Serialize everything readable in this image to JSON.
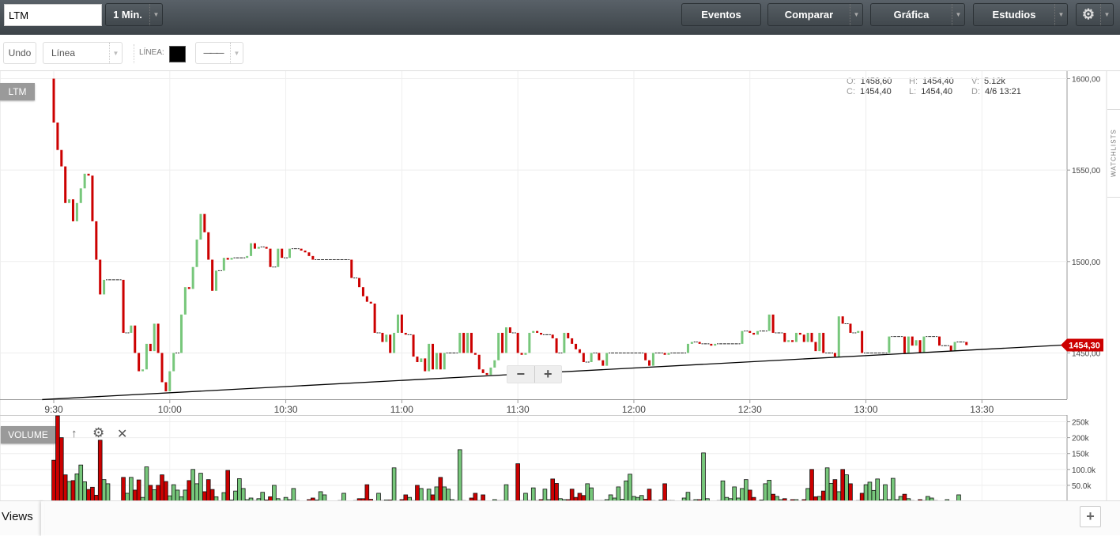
{
  "topbar": {
    "symbol": "LTM",
    "interval": "1 Min.",
    "buttons": [
      "Eventos",
      "Comparar",
      "Gráfica",
      "Estudios"
    ],
    "settings_icon": "gear-icon"
  },
  "toolbar": {
    "undo": "Undo",
    "tool": "Línea",
    "line_label": "LÍNEA:",
    "line_color": "#000000",
    "line_style": "———"
  },
  "ohlc": {
    "o_label": "O:",
    "o": "1458,60",
    "h_label": "H:",
    "h": "1454,40",
    "v_label": "V:",
    "v": "5.12k",
    "c_label": "C:",
    "c": "1454,40",
    "l_label": "L:",
    "l": "1454,40",
    "d_label": "D:",
    "d": "4/6 13:21"
  },
  "price_panel": {
    "badge": "LTM",
    "current_price": "1454,30"
  },
  "volume_panel": {
    "badge": "VOLUME"
  },
  "watchlists": "WATCHLISTS",
  "views": {
    "label": "Views"
  },
  "colors": {
    "up": "#77c77b",
    "down": "#cc0000",
    "price_tag": "#cc0000"
  },
  "chart_data": [
    {
      "type": "candlestick",
      "interval": "1 min",
      "start_time": "9:30",
      "first_open": 1600,
      "y_ticks": [
        1600,
        1550,
        1500,
        1450
      ],
      "y_tick_labels": [
        "1600,00",
        "1550,00",
        "1500,00",
        "1450,00"
      ],
      "x_ticks": [
        "9:30",
        "10:00",
        "10:30",
        "11:00",
        "11:30",
        "12:00",
        "12:30",
        "13:00",
        "13:30"
      ],
      "closes": [
        1576,
        1561,
        1552,
        1532,
        1534,
        1522,
        1532,
        1540,
        1548,
        1547,
        1522,
        1501,
        1482,
        1490,
        1490,
        1490,
        1490,
        1490,
        1461,
        1461,
        1465,
        1450,
        1440,
        1441,
        1455,
        1451,
        1466,
        1450,
        1434,
        1429,
        1440,
        1450,
        1450,
        1471,
        1486,
        1485,
        1497,
        1512,
        1526,
        1516,
        1501,
        1484,
        1495,
        1495,
        1502,
        1501,
        1502,
        1502,
        1502,
        1502,
        1503,
        1510,
        1507,
        1508,
        1508,
        1507,
        1497,
        1497,
        1507,
        1502,
        1502,
        1507,
        1507,
        1507,
        1506,
        1505,
        1503,
        1501,
        1501,
        1501,
        1501,
        1501,
        1501,
        1501,
        1501,
        1501,
        1501,
        1491,
        1491,
        1486,
        1481,
        1478,
        1477,
        1461,
        1461,
        1456,
        1460,
        1450,
        1461,
        1471,
        1461,
        1460,
        1460,
        1448,
        1445,
        1447,
        1440,
        1455,
        1441,
        1450,
        1441,
        1450,
        1450,
        1450,
        1450,
        1461,
        1450,
        1461,
        1450,
        1449,
        1441,
        1439,
        1438,
        1442,
        1446,
        1461,
        1450,
        1464,
        1461,
        1461,
        1450,
        1449,
        1450,
        1461,
        1462,
        1461,
        1460,
        1460,
        1460,
        1458,
        1450,
        1450,
        1461,
        1458,
        1455,
        1452,
        1450,
        1445,
        1445,
        1450,
        1450,
        1446,
        1443,
        1450,
        1450,
        1450,
        1450,
        1450,
        1450,
        1450,
        1450,
        1450,
        1450,
        1446,
        1443,
        1450,
        1450,
        1450,
        1449,
        1450,
        1450,
        1450,
        1450,
        1450,
        1455,
        1456,
        1456,
        1455,
        1455,
        1455,
        1454,
        1455,
        1455,
        1455,
        1455,
        1455,
        1455,
        1455,
        1462,
        1462,
        1461,
        1460,
        1462,
        1462,
        1462,
        1471,
        1461,
        1461,
        1461,
        1456,
        1457,
        1456,
        1461,
        1460,
        1456,
        1461,
        1456,
        1451,
        1461,
        1450,
        1450,
        1450,
        1448,
        1470,
        1466,
        1466,
        1461,
        1461,
        1462,
        1450,
        1450,
        1450,
        1450,
        1450,
        1450,
        1450,
        1459,
        1459,
        1459,
        1459,
        1450,
        1459,
        1454,
        1457,
        1450,
        1459,
        1459,
        1459,
        1459,
        1454,
        1454,
        1454,
        1451,
        1456,
        1456,
        1456,
        1454.3
      ],
      "trendline": {
        "start": [
          "9:27",
          1424.5
        ],
        "end": [
          "13:51",
          1454.3
        ]
      }
    },
    {
      "type": "bar",
      "series": "volume",
      "y_ticks": [
        250,
        200,
        150,
        100,
        50
      ],
      "y_tick_labels": [
        "250k",
        "200k",
        "150k",
        "100.0k",
        "50.0k"
      ],
      "values_k": [
        129,
        275,
        200,
        83,
        62,
        65,
        86,
        114,
        61,
        37,
        44,
        19,
        192,
        68,
        55,
        0,
        0,
        0,
        75,
        25,
        75,
        35,
        67,
        12,
        108,
        50,
        36,
        50,
        83,
        62,
        17,
        52,
        35,
        14,
        35,
        65,
        100,
        55,
        88,
        30,
        68,
        37,
        14,
        1,
        27,
        97,
        4,
        32,
        71,
        40,
        5,
        10,
        2,
        8,
        28,
        4,
        14,
        50,
        8,
        2,
        12,
        5,
        40,
        2,
        0,
        0,
        5,
        10,
        4,
        30,
        20,
        0,
        0,
        0,
        2,
        25,
        0,
        0,
        2,
        8,
        8,
        52,
        6,
        0,
        25,
        2,
        4,
        4,
        105,
        0,
        5,
        20,
        12,
        2,
        50,
        40,
        2,
        38,
        20,
        45,
        75,
        45,
        38,
        5,
        2,
        162,
        2,
        0,
        10,
        25,
        2,
        20,
        0,
        0,
        5,
        2,
        2,
        52,
        0,
        0,
        118,
        2,
        25,
        2,
        42,
        2,
        5,
        38,
        5,
        70,
        56,
        8,
        5,
        5,
        38,
        12,
        25,
        18,
        55,
        42,
        2,
        2,
        2,
        5,
        20,
        10,
        45,
        6,
        64,
        85,
        15,
        12,
        18,
        6,
        38,
        2,
        0,
        4,
        55,
        2,
        2,
        0,
        0,
        10,
        28,
        2,
        5,
        5,
        152,
        8,
        0,
        0,
        2,
        64,
        12,
        8,
        45,
        10,
        40,
        68,
        35,
        12,
        0,
        4,
        55,
        66,
        22,
        15,
        5,
        8,
        0,
        5,
        5,
        0,
        5,
        40,
        100,
        14,
        15,
        32,
        105,
        56,
        68,
        30,
        100,
        83,
        55,
        0,
        2,
        25,
        52,
        60,
        34,
        70,
        5,
        52,
        5,
        72,
        5,
        15,
        22,
        8,
        2,
        0,
        5,
        2,
        15,
        10,
        2,
        0,
        0,
        5,
        0,
        0,
        20,
        0,
        0,
        0
      ]
    }
  ]
}
